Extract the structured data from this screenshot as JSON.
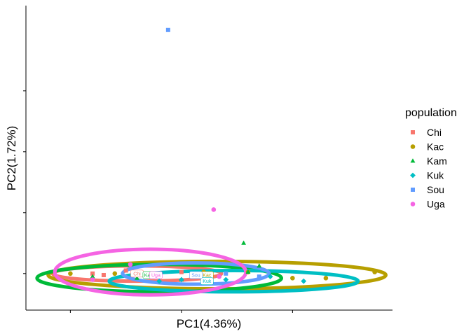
{
  "chart_data": {
    "type": "scatter",
    "xlabel": "PC1(4.36%)",
    "ylabel": "PC2(1.72%)",
    "xlim": [
      -0.07,
      0.095
    ],
    "ylim": [
      -0.012,
      0.088
    ],
    "grid": false,
    "legend_title": "population",
    "legend_position": "right",
    "series": [
      {
        "name": "Chi",
        "color": "#F8766D",
        "marker": "square",
        "points": [
          [
            -0.04,
            0.0
          ],
          [
            -0.025,
            0.001
          ],
          [
            -0.01,
            0.0
          ],
          [
            0.0,
            0.0005
          ],
          [
            -0.035,
            -0.0005
          ]
        ],
        "ellipse": {
          "cx": -0.02,
          "cy": 0.0,
          "rx": 0.038,
          "ry": 0.0025
        },
        "centroid": [
          -0.02,
          0.0
        ],
        "centroid_label": "Chi"
      },
      {
        "name": "Kac",
        "color": "#B79F00",
        "marker": "circle",
        "points": [
          [
            0.087,
            0.0005
          ],
          [
            0.05,
            -0.0015
          ],
          [
            0.065,
            -0.0015
          ],
          [
            0.03,
            0.0005
          ],
          [
            -0.03,
            0.0
          ],
          [
            0.01,
            0.0005
          ],
          [
            -0.05,
            0.0
          ]
        ],
        "ellipse": {
          "cx": 0.016,
          "cy": -0.0005,
          "rx": 0.076,
          "ry": 0.0045
        },
        "centroid": [
          0.0115,
          -0.0005
        ],
        "centroid_label": "Kac"
      },
      {
        "name": "Kam",
        "color": "#00BA38",
        "marker": "triangle",
        "points": [
          [
            0.028,
            0.01
          ],
          [
            0.035,
            0.0025
          ],
          [
            0.0,
            -0.002
          ],
          [
            -0.02,
            -0.0015
          ],
          [
            0.03,
            0.0005
          ],
          [
            -0.04,
            -0.001
          ]
        ],
        "ellipse": {
          "cx": -0.01,
          "cy": -0.0015,
          "rx": 0.055,
          "ry": 0.0045
        },
        "centroid": [
          -0.0145,
          -0.0005
        ],
        "centroid_label": "Kam"
      },
      {
        "name": "Kuk",
        "color": "#00BFC4",
        "marker": "diamond",
        "points": [
          [
            0.055,
            -0.0025
          ],
          [
            0.02,
            -0.002
          ],
          [
            -0.01,
            -0.0025
          ],
          [
            0.04,
            -0.001
          ],
          [
            0.0,
            -0.002
          ]
        ],
        "ellipse": {
          "cx": 0.0235,
          "cy": -0.0025,
          "rx": 0.056,
          "ry": 0.0035
        },
        "centroid": [
          0.0115,
          -0.0025
        ],
        "centroid_label": "Kuk"
      },
      {
        "name": "Sou",
        "color": "#619CFF",
        "marker": "square",
        "points": [
          [
            -0.006,
            0.08
          ],
          [
            0.035,
            -0.001
          ],
          [
            0.02,
            0.0
          ],
          [
            -0.01,
            0.0
          ]
        ],
        "ellipse": {
          "cx": 0.0065,
          "cy": 0.0,
          "rx": 0.033,
          "ry": 0.0035
        },
        "centroid": [
          0.0065,
          -0.0005
        ],
        "centroid_label": "Sou"
      },
      {
        "name": "Uga",
        "color": "#F564E3",
        "marker": "circle",
        "points": [
          [
            0.0145,
            0.021
          ],
          [
            -0.023,
            0.003
          ],
          [
            0.017,
            -0.001
          ],
          [
            -0.04,
            -0.002
          ]
        ],
        "ellipse": {
          "cx": -0.014,
          "cy": 0.0005,
          "rx": 0.043,
          "ry": 0.0075
        },
        "centroid": [
          -0.0115,
          -0.0005
        ],
        "centroid_label": "Uga"
      }
    ]
  }
}
